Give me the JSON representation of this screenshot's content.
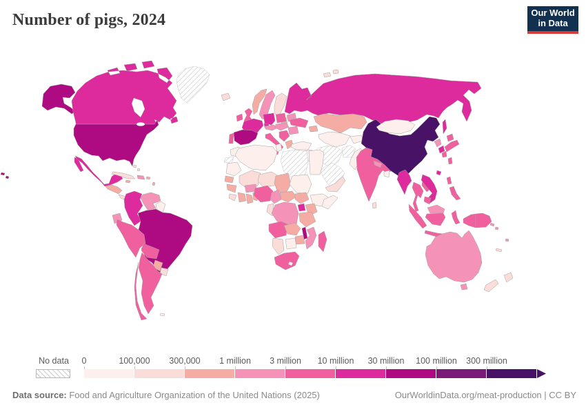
{
  "header": {
    "title": "Number of pigs, 2024"
  },
  "logo": {
    "line1": "Our World",
    "line2": "in Data",
    "bg": "#12304f",
    "accent": "#d93a35"
  },
  "legend": {
    "no_data_label": "No data",
    "ticks": [
      "0",
      "100,000",
      "300,000",
      "1 million",
      "3 million",
      "10 million",
      "30 million",
      "100 million",
      "300 million"
    ],
    "colors": [
      "#fdf0ec",
      "#fadcd8",
      "#f5aca4",
      "#f492b7",
      "#f0609f",
      "#dd2a9d",
      "#ae0b82",
      "#7c1a79",
      "#481266"
    ]
  },
  "footer": {
    "source_label": "Data source:",
    "source_text": " Food and Agriculture Organization of the United Nations (2025)",
    "link_text": "OurWorldinData.org/meat-production | CC BY"
  },
  "map": {
    "stroke": "#a5a0a0",
    "no_data_stroke": "#c6c6c6",
    "regions": {
      "alaska": 7,
      "canada": 6,
      "greenland": 0,
      "iceland": 2,
      "usa": 7,
      "hawaii": 7,
      "mexico": 6,
      "baja": 6,
      "central-america-n": 3,
      "central-america-s": 2,
      "cuba": 2,
      "hispaniola": 4,
      "jamaica": 3,
      "puerto-rico": 3,
      "bahamas": 2,
      "lesser-antilles": 3,
      "colombia": 6,
      "venezuela": 4,
      "guyanas": 1,
      "ecuador": 4,
      "peru": 5,
      "brazil": 7,
      "bolivia": 5,
      "paraguay": 3,
      "uruguay": 2,
      "argentina": 5,
      "chile": 5,
      "falklands": 1,
      "ireland": 5,
      "uk": 5,
      "norway": 3,
      "sweden": 4,
      "finland": 2,
      "denmark": 6,
      "baltics": 3,
      "belarus": 4,
      "poland": 5,
      "germany": 6,
      "france": 6,
      "spain": 7,
      "portugal": 5,
      "alpine": 4,
      "czech-hungary": 4,
      "italy": 5,
      "balkans": 5,
      "greece": 3,
      "romania": 4,
      "ukraine": 5,
      "russia": 6,
      "sakhalin": 6,
      "svalbard": 2,
      "kazakhstan": 3,
      "caucasus": 3,
      "turkey": 1,
      "central-asia": 1,
      "kyrgyz-tajik": 1,
      "iran": 0,
      "afghanistan": 0,
      "levant-iraq": 1,
      "saudi": 0,
      "yemen-oman": 2,
      "pakistan": 1,
      "india": 5,
      "nepal": 4,
      "bangladesh": 1,
      "sri-lanka": 2,
      "china": 9,
      "mongolia": 1,
      "hainan": 6,
      "taiwan": 5,
      "north-korea": 4,
      "south-korea": 6,
      "japan": 5,
      "myanmar": 6,
      "thailand": 5,
      "laos": 5,
      "vietnam": 6,
      "cambodia": 5,
      "malaysia-peninsula": 4,
      "malaysia-borneo": 4,
      "philippines": 5,
      "indonesia": 5,
      "png": 5,
      "solomon": 4,
      "fiji": 4,
      "new-caledonia": 2,
      "australia": 4,
      "tasmania": 4,
      "nz-north": 2,
      "nz-south": 2,
      "morocco": 1,
      "western-sahara": 0,
      "algeria": 1,
      "tunisia": 1,
      "libya": 0,
      "egypt": 1,
      "mauritania": 1,
      "mali": 2,
      "niger": 2,
      "chad": 3,
      "sudan": 1,
      "south-sudan": 3,
      "senegal": 3,
      "guinea-group": 3,
      "sierra-liberia": 2,
      "ivory-coast": 3,
      "ghana": 3,
      "togo-benin": 3,
      "burkina": 4,
      "nigeria": 5,
      "cameroon": 4,
      "car": 3,
      "ethiopia": 1,
      "somalia": 1,
      "uganda": 6,
      "kenya": 3,
      "congo-gabon": 2,
      "drc": 4,
      "tanzania": 3,
      "angola": 5,
      "zambia": 3,
      "malawi": 7,
      "mozambique": 4,
      "zimbabwe": 3,
      "botswana": 1,
      "namibia": 2,
      "south-africa": 5,
      "lesotho": 1,
      "madagascar": 5
    }
  }
}
